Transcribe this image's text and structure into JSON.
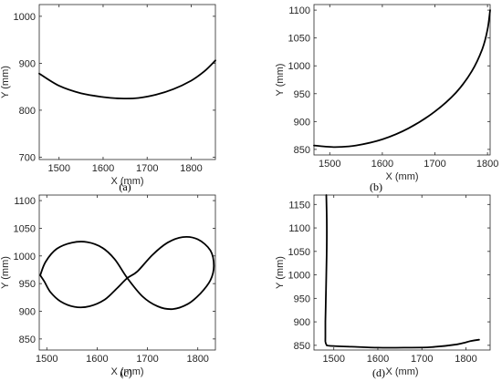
{
  "figure": {
    "captions": [
      "(a)",
      "(b)",
      "(c)",
      "(d)"
    ]
  },
  "chart_data": [
    {
      "type": "line",
      "xlabel": "X (mm)",
      "ylabel": "Y (mm)",
      "xlim": [
        1455,
        1855
      ],
      "ylim": [
        695,
        1025
      ],
      "xticks": [
        1500,
        1600,
        1700,
        1800
      ],
      "yticks": [
        700,
        800,
        900,
        1000
      ],
      "grid": false,
      "x": [
        1455,
        1500,
        1550,
        1600,
        1640,
        1680,
        1720,
        1760,
        1800,
        1830,
        1855
      ],
      "y": [
        878,
        852,
        836,
        828,
        825,
        826,
        833,
        845,
        863,
        883,
        906
      ]
    },
    {
      "type": "line",
      "xlabel": "X (mm)",
      "ylabel": "Y (mm)",
      "xlim": [
        1470,
        1805
      ],
      "ylim": [
        840,
        1110
      ],
      "xticks": [
        1500,
        1600,
        1700,
        1800
      ],
      "yticks": [
        850,
        900,
        950,
        1000,
        1050,
        1100
      ],
      "grid": false,
      "x": [
        1470,
        1510,
        1550,
        1600,
        1650,
        1700,
        1740,
        1770,
        1790,
        1800,
        1805
      ],
      "y": [
        857,
        854,
        857,
        868,
        888,
        918,
        952,
        990,
        1030,
        1065,
        1100
      ]
    },
    {
      "type": "line",
      "xlabel": "X (mm)",
      "ylabel": "Y (mm)",
      "xlim": [
        1485,
        1835
      ],
      "ylim": [
        830,
        1110
      ],
      "xticks": [
        1500,
        1600,
        1700,
        1800
      ],
      "yticks": [
        850,
        900,
        950,
        1000,
        1050,
        1100
      ],
      "grid": false,
      "x": [
        1487,
        1498,
        1520,
        1550,
        1580,
        1610,
        1635,
        1660,
        1690,
        1720,
        1750,
        1780,
        1805,
        1825,
        1832,
        1825,
        1800,
        1770,
        1740,
        1710,
        1680,
        1660,
        1640,
        1615,
        1585,
        1555,
        1527,
        1507,
        1495,
        1487
      ],
      "y": [
        965,
        990,
        1013,
        1024,
        1025,
        1015,
        994,
        960,
        927,
        909,
        904,
        913,
        932,
        956,
        982,
        1010,
        1030,
        1034,
        1024,
        1002,
        972,
        960,
        942,
        921,
        909,
        908,
        918,
        935,
        954,
        965
      ]
    },
    {
      "type": "line",
      "xlabel": "X (mm)",
      "ylabel": "Y (mm)",
      "xlim": [
        1455,
        1855
      ],
      "ylim": [
        840,
        1170
      ],
      "xticks": [
        1500,
        1600,
        1700,
        1800
      ],
      "yticks": [
        850,
        900,
        950,
        1000,
        1050,
        1100,
        1150
      ],
      "grid": false,
      "x": [
        1483,
        1484,
        1484,
        1483,
        1482,
        1481,
        1481,
        1481,
        1483,
        1490,
        1540,
        1600,
        1660,
        1720,
        1780,
        1810,
        1830
      ],
      "y": [
        1170,
        1120,
        1060,
        1000,
        950,
        900,
        870,
        858,
        852,
        849,
        847,
        845,
        845,
        846,
        852,
        859,
        862
      ]
    }
  ]
}
